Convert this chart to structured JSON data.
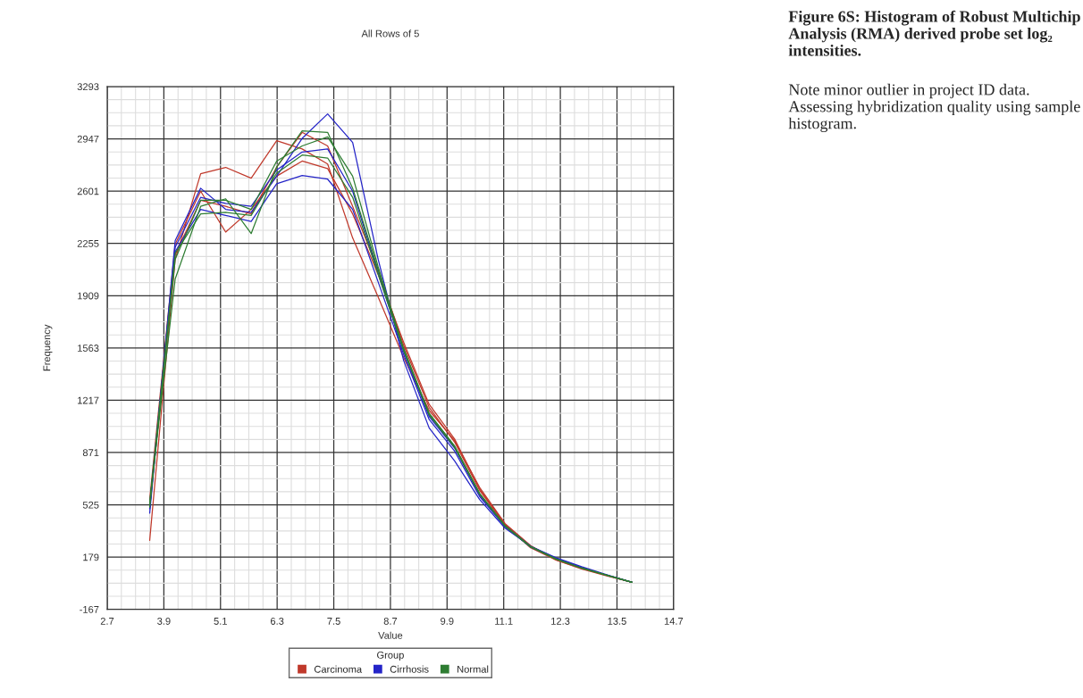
{
  "chart_data": {
    "type": "line",
    "title": "All Rows of 5",
    "xlabel": "Value",
    "ylabel": "Frequency",
    "legend_title": "Group",
    "x": [
      3.6,
      4.14,
      4.68,
      5.21,
      5.75,
      6.29,
      6.83,
      7.37,
      7.9,
      8.44,
      8.98,
      9.52,
      10.06,
      10.59,
      11.13,
      11.67,
      12.21,
      12.75,
      13.28,
      13.82
    ],
    "series": [
      {
        "name": "Carcinoma",
        "color": "#c0392b",
        "values": [
          290,
          2150,
          2716,
          2758,
          2687,
          2935,
          2880,
          2780,
          2291,
          1900,
          1500,
          1150,
          950,
          640,
          400,
          255,
          160,
          100,
          55,
          12
        ]
      },
      {
        "color": "#c0392b",
        "values": [
          560,
          2250,
          2600,
          2330,
          2480,
          2700,
          2800,
          2750,
          2450,
          2050,
          1600,
          1190,
          960,
          630,
          395,
          250,
          165,
          105,
          60,
          12
        ]
      },
      {
        "color": "#c0392b",
        "values": [
          500,
          2180,
          2540,
          2500,
          2450,
          2760,
          2990,
          2900,
          2500,
          2080,
          1580,
          1170,
          940,
          620,
          390,
          240,
          160,
          104,
          58,
          12
        ]
      },
      {
        "name": "Cirrhosis",
        "color": "#2424c8",
        "values": [
          470,
          2274,
          2620,
          2480,
          2460,
          2700,
          2950,
          3112,
          2923,
          2150,
          1480,
          1034,
          815,
          560,
          370,
          250,
          175,
          115,
          62,
          12
        ]
      },
      {
        "color": "#2424c8",
        "values": [
          500,
          2200,
          2480,
          2440,
          2400,
          2650,
          2704,
          2680,
          2480,
          2000,
          1520,
          1090,
          880,
          580,
          380,
          245,
          168,
          108,
          60,
          12
        ]
      },
      {
        "color": "#2424c8",
        "values": [
          520,
          2230,
          2560,
          2520,
          2500,
          2740,
          2860,
          2880,
          2600,
          2060,
          1540,
          1110,
          900,
          590,
          385,
          250,
          170,
          110,
          60,
          12
        ]
      },
      {
        "name": "Normal",
        "color": "#2e7d32",
        "values": [
          540,
          2020,
          2500,
          2550,
          2320,
          2760,
          3000,
          2990,
          2620,
          2080,
          1560,
          1130,
          910,
          600,
          385,
          248,
          166,
          106,
          59,
          12
        ]
      },
      {
        "color": "#2e7d32",
        "values": [
          510,
          2150,
          2540,
          2540,
          2480,
          2800,
          2900,
          2960,
          2700,
          2100,
          1550,
          1120,
          905,
          595,
          382,
          246,
          166,
          106,
          59,
          12
        ]
      },
      {
        "color": "#2e7d32",
        "values": [
          530,
          2190,
          2450,
          2460,
          2440,
          2720,
          2840,
          2820,
          2560,
          2050,
          1545,
          1130,
          915,
          600,
          386,
          248,
          166,
          106,
          59,
          12
        ]
      }
    ],
    "xlim": [
      2.7,
      14.7
    ],
    "xticks": [
      2.7,
      3.9,
      5.1,
      6.3,
      7.5,
      8.7,
      9.9,
      11.1,
      12.3,
      13.5,
      14.7
    ],
    "ylim": [
      -167,
      3293
    ],
    "yticks": [
      -167,
      179,
      525,
      871,
      1217,
      1563,
      1909,
      2255,
      2601,
      2947,
      3293
    ],
    "grid": true,
    "legend": "bottom",
    "marker": "none",
    "line_style": "solid",
    "annotations": [
      "Figure 6S: Histogram of Robust Multichip Analysis (RMA) derived probe set log₂ intensities.",
      "Note minor outlier in project ID data. Assessing hybridization quality using sample histogram."
    ]
  }
}
